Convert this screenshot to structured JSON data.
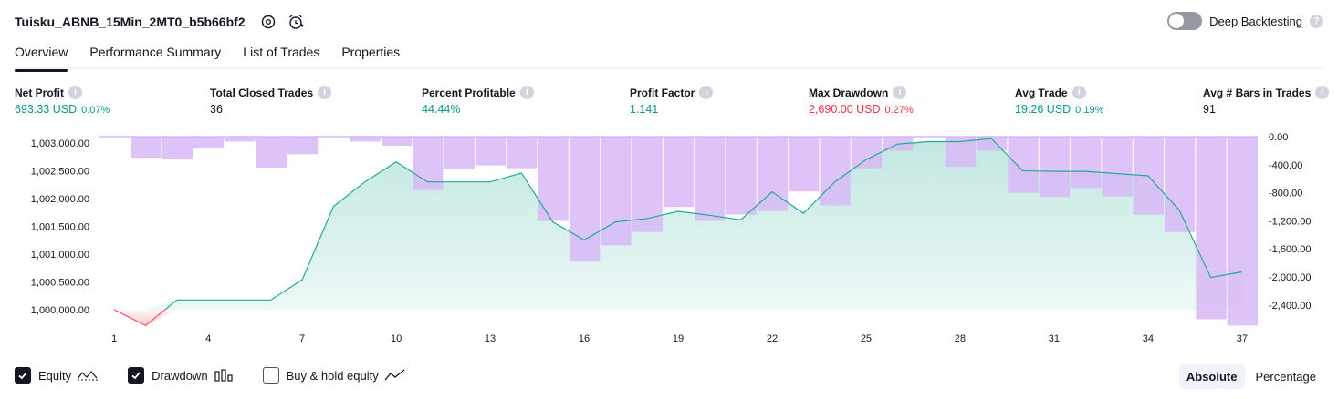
{
  "header": {
    "strategy_name": "Tuisku_ABNB_15Min_2MT0_b5b66bf2",
    "deep_backtesting_label": "Deep Backtesting"
  },
  "tabs": [
    {
      "label": "Overview"
    },
    {
      "label": "Performance Summary"
    },
    {
      "label": "List of Trades"
    },
    {
      "label": "Properties"
    }
  ],
  "metrics": {
    "net_profit": {
      "label": "Net Profit",
      "value": "693.33 USD",
      "pct": "0.07%"
    },
    "total_closed_trades": {
      "label": "Total Closed Trades",
      "value": "36"
    },
    "percent_profitable": {
      "label": "Percent Profitable",
      "value": "44.44%"
    },
    "profit_factor": {
      "label": "Profit Factor",
      "value": "1.141"
    },
    "max_drawdown": {
      "label": "Max Drawdown",
      "value": "2,690.00 USD",
      "pct": "0.27%"
    },
    "avg_trade": {
      "label": "Avg Trade",
      "value": "19.26 USD",
      "pct": "0.19%"
    },
    "avg_bars": {
      "label": "Avg # Bars in Trades",
      "value": "91"
    }
  },
  "legend": {
    "equity": "Equity",
    "drawdown": "Drawdown",
    "buy_hold": "Buy & hold equity"
  },
  "view_mode": {
    "absolute": "Absolute",
    "percentage": "Percentage",
    "selected": "Absolute"
  },
  "colors": {
    "equity_line": "#22ab94",
    "equity_fill": "#22ab94",
    "loss_line": "#f7525f",
    "drawdown_bar": "#d7b8f7",
    "green_text": "#089981",
    "red_text": "#f23645"
  },
  "chart_data": {
    "type": "area",
    "x_ticks": [
      "1",
      "4",
      "7",
      "10",
      "13",
      "16",
      "19",
      "22",
      "25",
      "28",
      "31",
      "34",
      "37"
    ],
    "y_left_ticks": [
      "1,003,000.00",
      "1,002,500.00",
      "1,002,000.00",
      "1,001,500.00",
      "1,001,000.00",
      "1,000,500.00",
      "1,000,000.00"
    ],
    "y_right_ticks": [
      "0.00",
      "-400.00",
      "-800.00",
      "-1,200.00",
      "-1,600.00",
      "-2,000.00",
      "-2,400.00"
    ],
    "ylim_left": [
      999700,
      1003100
    ],
    "ylim_right": [
      -2690,
      0
    ],
    "series": [
      {
        "name": "Equity",
        "x": [
          1,
          2,
          3,
          4,
          5,
          6,
          7,
          8,
          9,
          10,
          11,
          12,
          13,
          14,
          15,
          16,
          17,
          18,
          19,
          20,
          21,
          22,
          23,
          24,
          25,
          26,
          27,
          28,
          29,
          30,
          31,
          32,
          33,
          34,
          35,
          36,
          37
        ],
        "values": [
          1000000,
          999715,
          1000175,
          1000175,
          1000175,
          1000175,
          1000540,
          1001860,
          1002300,
          1002660,
          1002300,
          1002300,
          1002300,
          1002460,
          1001580,
          1001255,
          1001580,
          1001640,
          1001770,
          1001700,
          1001620,
          1002120,
          1001735,
          1002300,
          1002700,
          1002980,
          1003025,
          1003025,
          1003080,
          1002500,
          1002490,
          1002490,
          1002450,
          1002410,
          1001790,
          1000580,
          1000680
        ]
      },
      {
        "name": "Drawdown",
        "x": [
          1,
          2,
          3,
          4,
          5,
          6,
          7,
          8,
          9,
          10,
          11,
          12,
          13,
          14,
          15,
          16,
          17,
          18,
          19,
          20,
          21,
          22,
          23,
          24,
          25,
          26,
          27,
          28,
          29,
          30,
          31,
          32,
          33,
          34,
          35,
          36,
          37
        ],
        "values": [
          0,
          -300,
          -320,
          -170,
          -70,
          -440,
          -250,
          0,
          -70,
          -130,
          -760,
          -460,
          -410,
          -450,
          -1200,
          -1780,
          -1550,
          -1360,
          -1000,
          -1200,
          -1110,
          -1060,
          -780,
          -980,
          -450,
          -200,
          0,
          -430,
          -200,
          -800,
          -860,
          -730,
          -850,
          -1110,
          -1360,
          -2600,
          -2690
        ]
      }
    ]
  }
}
